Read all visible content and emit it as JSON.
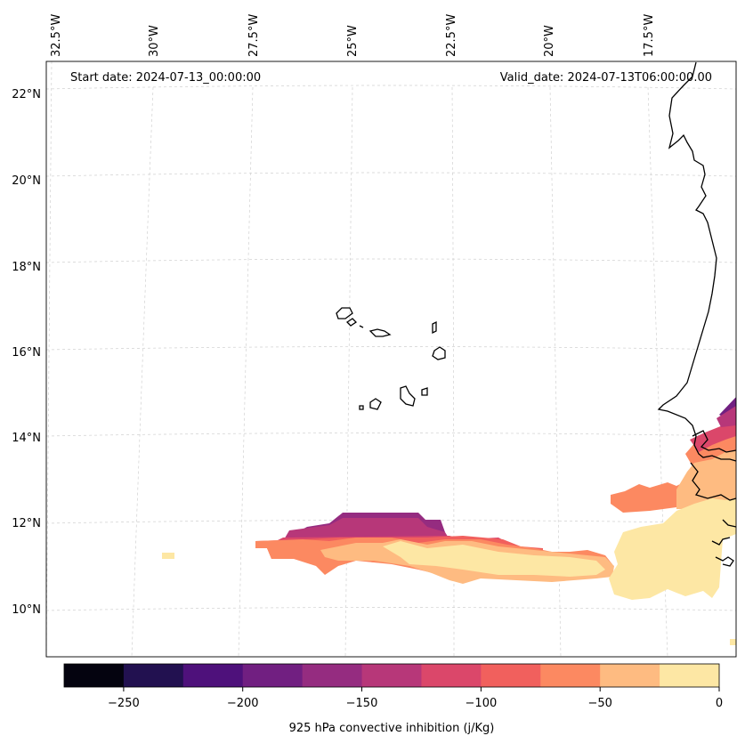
{
  "map": {
    "start_date": "Start date: 2024-07-13_00:00:00",
    "valid_date": "Valid_date: 2024-07-13T06:00:00.00",
    "lon_labels": [
      "32.5°W",
      "30°W",
      "27.5°W",
      "25°W",
      "22.5°W",
      "20°W",
      "17.5°W"
    ],
    "lat_labels": [
      "22°N",
      "20°N",
      "18°N",
      "16°N",
      "14°N",
      "12°N",
      "10°N"
    ]
  },
  "colorbar": {
    "label": "925 hPa convective inhibition (j/Kg)",
    "ticks": [
      "−250",
      "−200",
      "−150",
      "−100",
      "−50",
      "0"
    ],
    "colors": [
      "#04030f",
      "#221150",
      "#4e117b",
      "#711f81",
      "#952c80",
      "#b73779",
      "#db476a",
      "#f1605d",
      "#fc8961",
      "#febb81",
      "#fde7a4"
    ]
  },
  "colors": {
    "coastline": "#000000",
    "grid": "#cccccc"
  }
}
